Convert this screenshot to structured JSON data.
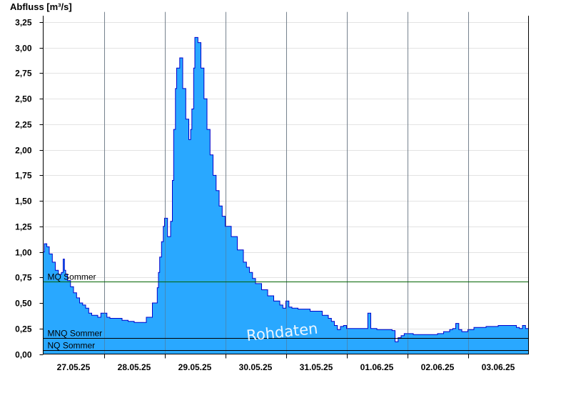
{
  "chart_data": {
    "type": "area",
    "title": "",
    "ylabel": "Abfluss [m³/s]",
    "xlabel": "",
    "ylim": [
      0,
      3.25
    ],
    "xlim": [
      0,
      8
    ],
    "grid": true,
    "y_ticks": [
      "0,00",
      "0,25",
      "0,50",
      "0,75",
      "1,00",
      "1,25",
      "1,50",
      "1,75",
      "2,00",
      "2,25",
      "2,50",
      "2,75",
      "3,00",
      "3,25"
    ],
    "x_tick_labels": [
      "27.05.25",
      "28.05.25",
      "29.05.25",
      "30.05.25",
      "31.05.25",
      "01.06.25",
      "02.06.25",
      "03.06.25"
    ],
    "x_tick_positions": [
      0.5,
      1.5,
      2.5,
      3.5,
      4.5,
      5.5,
      6.5,
      7.5
    ],
    "day_separators": [
      1,
      2,
      3,
      4,
      5,
      6,
      7
    ],
    "fill_color": "#29a8ff",
    "line_color": "#0000cc",
    "reference_lines": [
      {
        "name": "MQ Sommer",
        "value": 0.71,
        "color": "#006400"
      },
      {
        "name": "MNQ Sommer",
        "value": 0.16,
        "color": "#000000"
      },
      {
        "name": "NQ Sommer",
        "value": 0.04,
        "color": "#000000"
      }
    ],
    "watermark": "Rohdaten",
    "series": [
      {
        "x": [
          0,
          0.02,
          0.06,
          0.1,
          0.15,
          0.2,
          0.25,
          0.3,
          0.33,
          0.35,
          0.37,
          0.4,
          0.45,
          0.5,
          0.55,
          0.6,
          0.65,
          0.7,
          0.75,
          0.8,
          0.9,
          0.95,
          1.0,
          1.05,
          1.1,
          1.2,
          1.3,
          1.4,
          1.45,
          1.5,
          1.6,
          1.7,
          1.8,
          1.88,
          1.9,
          1.92,
          1.95,
          1.98,
          2.0,
          2.05,
          2.1,
          2.13,
          2.15,
          2.18,
          2.2,
          2.25,
          2.3,
          2.35,
          2.4,
          2.43,
          2.45,
          2.48,
          2.5,
          2.55,
          2.6,
          2.65,
          2.7,
          2.75,
          2.8,
          2.85,
          2.9,
          2.95,
          3.0,
          3.1,
          3.2,
          3.3,
          3.35,
          3.4,
          3.45,
          3.5,
          3.6,
          3.7,
          3.8,
          3.9,
          3.95,
          4.0,
          4.05,
          4.1,
          4.2,
          4.3,
          4.4,
          4.5,
          4.6,
          4.7,
          4.75,
          4.8,
          4.85,
          4.9,
          4.95,
          5.0,
          5.1,
          5.2,
          5.3,
          5.35,
          5.4,
          5.5,
          5.6,
          5.7,
          5.75,
          5.8,
          5.85,
          5.9,
          5.95,
          6.0,
          6.1,
          6.2,
          6.3,
          6.4,
          6.5,
          6.6,
          6.7,
          6.75,
          6.8,
          6.85,
          6.9,
          7.0,
          7.1,
          7.2,
          7.3,
          7.4,
          7.5,
          7.6,
          7.7,
          7.75,
          7.8,
          7.85,
          7.9,
          7.95,
          8.0
        ],
        "y": [
          1.0,
          1.08,
          1.05,
          0.98,
          0.9,
          0.82,
          0.78,
          0.8,
          0.93,
          0.82,
          0.78,
          0.72,
          0.66,
          0.6,
          0.55,
          0.5,
          0.48,
          0.45,
          0.4,
          0.38,
          0.36,
          0.4,
          0.4,
          0.36,
          0.35,
          0.35,
          0.33,
          0.32,
          0.32,
          0.31,
          0.31,
          0.36,
          0.5,
          0.65,
          0.8,
          0.95,
          1.1,
          1.25,
          1.33,
          1.15,
          1.3,
          1.7,
          2.2,
          2.6,
          2.8,
          2.9,
          2.6,
          2.3,
          2.1,
          2.2,
          2.4,
          2.8,
          3.1,
          3.05,
          2.8,
          2.5,
          2.2,
          1.95,
          1.75,
          1.6,
          1.45,
          1.35,
          1.25,
          1.15,
          1.02,
          0.9,
          0.85,
          0.8,
          0.74,
          0.69,
          0.63,
          0.57,
          0.52,
          0.48,
          0.45,
          0.52,
          0.46,
          0.45,
          0.44,
          0.44,
          0.42,
          0.42,
          0.38,
          0.35,
          0.32,
          0.28,
          0.24,
          0.27,
          0.28,
          0.25,
          0.25,
          0.25,
          0.25,
          0.4,
          0.25,
          0.24,
          0.24,
          0.24,
          0.23,
          0.12,
          0.16,
          0.18,
          0.2,
          0.2,
          0.19,
          0.19,
          0.19,
          0.19,
          0.2,
          0.22,
          0.24,
          0.25,
          0.3,
          0.24,
          0.22,
          0.24,
          0.26,
          0.26,
          0.27,
          0.27,
          0.28,
          0.28,
          0.28,
          0.28,
          0.26,
          0.25,
          0.28,
          0.25,
          0.25
        ]
      }
    ]
  }
}
